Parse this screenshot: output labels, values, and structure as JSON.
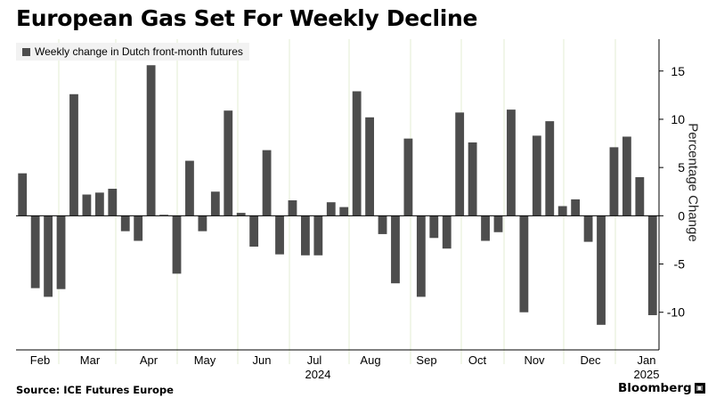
{
  "title": "European Gas Set For Weekly Decline",
  "legend": {
    "label": "Weekly change in Dutch front-month futures",
    "color": "#4d4d4d"
  },
  "y_axis_title": "Percentage Change",
  "source": "Source: ICE Futures Europe",
  "brand": "Bloomberg",
  "chart_data": {
    "type": "bar",
    "ylabel": "Percentage Change",
    "ylim": [
      -13.9,
      18.3
    ],
    "y_ticks": [
      15,
      10,
      5,
      0,
      -5,
      -10
    ],
    "grid": false,
    "legend_position": "top-left",
    "bar_color": "#4d4d4d",
    "month_labels": [
      "Feb",
      "Mar",
      "Apr",
      "May",
      "Jun",
      "Jul",
      "Aug",
      "Sep",
      "Oct",
      "Nov",
      "Dec",
      "Jan"
    ],
    "year_labels": [
      "2024",
      "2025"
    ],
    "series": [
      {
        "values": [
          4.4,
          -7.5,
          -8.4,
          -7.6,
          12.6,
          2.2,
          2.4,
          2.8,
          -1.6,
          -2.6,
          15.6,
          0.1,
          -6.0,
          5.7,
          -1.6,
          2.5,
          10.9,
          0.3,
          -3.2,
          6.8,
          -4.0,
          1.6,
          -4.1,
          -4.1,
          1.4,
          0.9,
          12.9,
          10.2,
          -1.9,
          -7.0,
          8.0,
          -8.4,
          -2.3,
          -3.4,
          10.7,
          7.6,
          -2.6,
          -1.7,
          11.0,
          -10.0,
          8.3,
          9.8,
          1.0,
          1.7,
          -2.7,
          -11.3,
          7.1,
          8.2,
          4.0,
          -10.3
        ]
      }
    ]
  }
}
